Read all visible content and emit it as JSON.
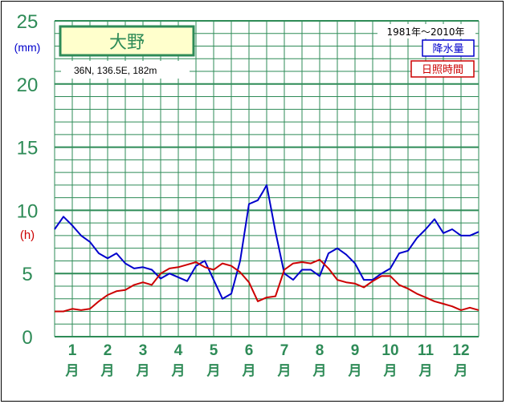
{
  "chart_data": {
    "type": "line",
    "title": "大野",
    "location": "36N, 136.5E, 182m",
    "period": "1981年〜2010年",
    "y_unit_top": "(mm)",
    "y_unit_bottom": "(h)",
    "yticks": [
      "0",
      "5",
      "10",
      "15",
      "20",
      "25"
    ],
    "ylim": [
      0,
      25
    ],
    "months": [
      {
        "num": "1",
        "suffix": "月"
      },
      {
        "num": "2",
        "suffix": "月"
      },
      {
        "num": "3",
        "suffix": "月"
      },
      {
        "num": "4",
        "suffix": "月"
      },
      {
        "num": "5",
        "suffix": "月"
      },
      {
        "num": "6",
        "suffix": "月"
      },
      {
        "num": "7",
        "suffix": "月"
      },
      {
        "num": "8",
        "suffix": "月"
      },
      {
        "num": "9",
        "suffix": "月"
      },
      {
        "num": "10",
        "suffix": "月"
      },
      {
        "num": "11",
        "suffix": "月"
      },
      {
        "num": "12",
        "suffix": "月"
      }
    ],
    "x_range_months": [
      0.5,
      12.5
    ],
    "series": [
      {
        "name": "降水量",
        "color": "#0000cc",
        "x": [
          0.5,
          0.75,
          1.0,
          1.25,
          1.5,
          1.75,
          2.0,
          2.25,
          2.5,
          2.75,
          3.0,
          3.25,
          3.5,
          3.75,
          4.0,
          4.25,
          4.5,
          4.75,
          5.0,
          5.25,
          5.5,
          5.75,
          6.0,
          6.25,
          6.4,
          6.5,
          6.75,
          7.0,
          7.25,
          7.5,
          7.75,
          8.0,
          8.25,
          8.5,
          8.75,
          9.0,
          9.25,
          9.5,
          9.75,
          10.0,
          10.25,
          10.5,
          10.75,
          11.0,
          11.25,
          11.5,
          11.75,
          12.0,
          12.25,
          12.5
        ],
        "values": [
          8.5,
          9.5,
          8.8,
          8.0,
          7.5,
          6.6,
          6.2,
          6.6,
          5.8,
          5.4,
          5.5,
          5.3,
          4.6,
          5.0,
          4.7,
          4.4,
          5.6,
          6.0,
          4.5,
          3.0,
          3.4,
          6.0,
          10.5,
          10.8,
          11.5,
          12.0,
          8.3,
          5.0,
          4.5,
          5.3,
          5.3,
          4.8,
          6.6,
          7.0,
          6.5,
          5.8,
          4.5,
          4.5,
          5.0,
          5.4,
          6.6,
          6.8,
          7.8,
          8.5,
          9.3,
          8.2,
          8.5,
          8.0,
          8.0,
          8.3
        ]
      },
      {
        "name": "日照時間",
        "color": "#cc0000",
        "x": [
          0.5,
          0.75,
          1.0,
          1.25,
          1.5,
          1.75,
          2.0,
          2.25,
          2.5,
          2.75,
          3.0,
          3.25,
          3.5,
          3.75,
          4.0,
          4.25,
          4.5,
          4.75,
          5.0,
          5.25,
          5.5,
          5.75,
          6.0,
          6.25,
          6.5,
          6.75,
          7.0,
          7.25,
          7.5,
          7.75,
          8.0,
          8.25,
          8.5,
          8.75,
          9.0,
          9.25,
          9.5,
          9.75,
          10.0,
          10.25,
          10.5,
          10.75,
          11.0,
          11.25,
          11.5,
          11.75,
          12.0,
          12.25,
          12.5
        ],
        "values": [
          2.0,
          2.0,
          2.2,
          2.1,
          2.2,
          2.8,
          3.3,
          3.6,
          3.7,
          4.1,
          4.3,
          4.1,
          5.0,
          5.4,
          5.5,
          5.7,
          5.9,
          5.5,
          5.3,
          5.8,
          5.6,
          5.1,
          4.3,
          2.8,
          3.1,
          3.2,
          5.3,
          5.8,
          5.9,
          5.8,
          6.1,
          5.4,
          4.5,
          4.3,
          4.2,
          3.9,
          4.4,
          4.8,
          4.8,
          4.1,
          3.8,
          3.4,
          3.1,
          2.8,
          2.6,
          2.4,
          2.1,
          2.3,
          2.1
        ]
      }
    ],
    "legend": {
      "precip_label": "降水量",
      "sun_label": "日照時間",
      "placement": "top-right"
    },
    "grid": true
  },
  "colors": {
    "grid": "#2e8b57",
    "text_green": "#2e8b57",
    "title_bg": "#ffffcc"
  }
}
